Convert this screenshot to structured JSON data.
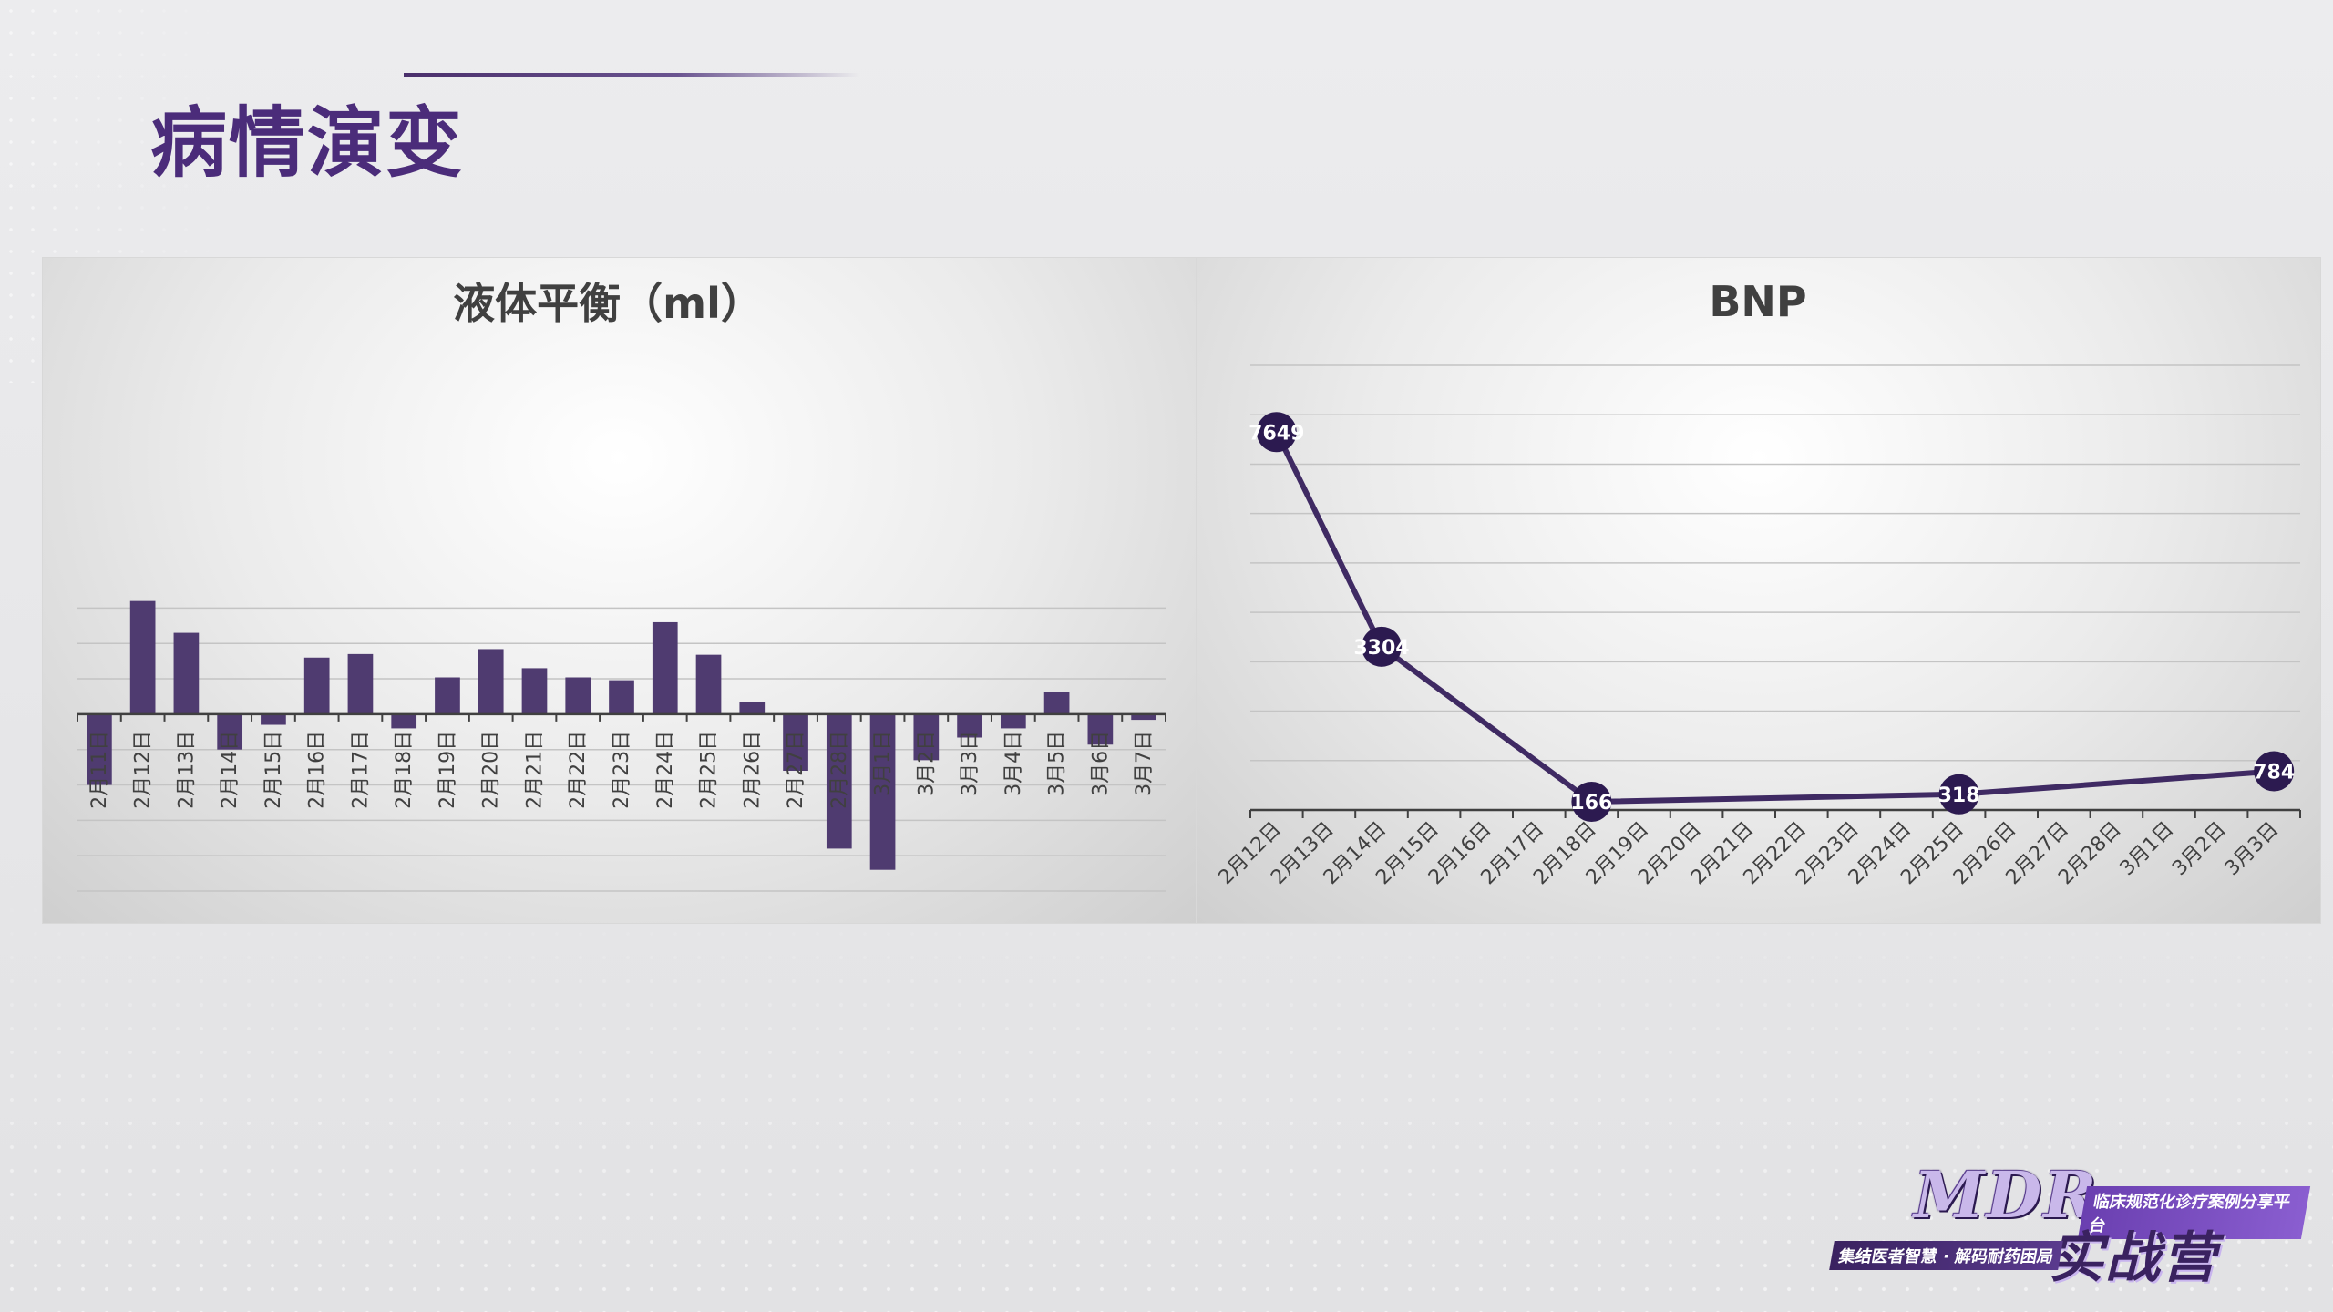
{
  "page": {
    "title": "病情演变"
  },
  "colors": {
    "accent": "#4b2c7a",
    "bar": "#4f3b70",
    "line": "#3f2a63",
    "marker": "#2c1a50"
  },
  "logo": {
    "mdr": "MDR",
    "name": "实战营",
    "badge_top": "临床规范化诊疗案例分享平台",
    "badge_bottom": "集结医者智慧 · 解码耐药困局"
  },
  "chart_data": [
    {
      "type": "bar",
      "title": "液体平衡（ml）",
      "categories": [
        "2月11日",
        "2月12日",
        "2月13日",
        "2月14日",
        "2月15日",
        "2月16日",
        "2月17日",
        "2月18日",
        "2月19日",
        "2月20日",
        "2月21日",
        "2月22日",
        "2月23日",
        "2月24日",
        "2月25日",
        "2月26日",
        "2月27日",
        "2月28日",
        "3月1日",
        "3月2日",
        "3月3日",
        "3月4日",
        "3月5日",
        "3月6日",
        "3月7日"
      ],
      "values": [
        -1000,
        1600,
        1150,
        -500,
        -150,
        800,
        850,
        -200,
        520,
        920,
        650,
        520,
        480,
        1300,
        840,
        170,
        -800,
        -1900,
        -2200,
        -650,
        -330,
        -200,
        310,
        -430,
        -80
      ],
      "ylim": [
        -2500,
        1750
      ],
      "grid": true,
      "legend": "none"
    },
    {
      "type": "line",
      "title": "BNP",
      "categories": [
        "2月12日",
        "2月13日",
        "2月14日",
        "2月15日",
        "2月16日",
        "2月17日",
        "2月18日",
        "2月19日",
        "2月20日",
        "2月21日",
        "2月22日",
        "2月23日",
        "2月24日",
        "2月25日",
        "2月26日",
        "2月27日",
        "2月28日",
        "3月1日",
        "3月2日",
        "3月3日"
      ],
      "points": [
        {
          "x": "2月12日",
          "y": 7649
        },
        {
          "x": "2月14日",
          "y": 3304
        },
        {
          "x": "2月18日",
          "y": 166
        },
        {
          "x": "2月25日",
          "y": 318
        },
        {
          "x": "3月3日",
          "y": 784
        }
      ],
      "ylim": [
        0,
        9000
      ],
      "grid": true,
      "legend": "none"
    }
  ]
}
